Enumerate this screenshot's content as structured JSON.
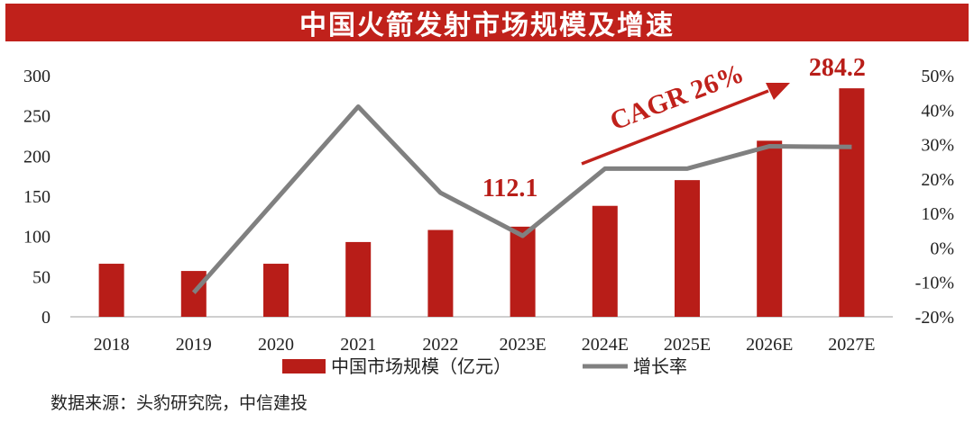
{
  "chart_data": {
    "type": "bar",
    "title": "中国火箭发射市场规模及增速",
    "categories": [
      "2018",
      "2019",
      "2020",
      "2021",
      "2022",
      "2023E",
      "2024E",
      "2025E",
      "2026E",
      "2027E"
    ],
    "series": [
      {
        "name": "中国市场规模（亿元）",
        "type": "bar",
        "axis": "left",
        "color": "#b81d18",
        "values": [
          66,
          57,
          66,
          93,
          108,
          112.1,
          138,
          170,
          219,
          284.2
        ]
      },
      {
        "name": "增长率",
        "type": "line",
        "axis": "right",
        "color": "#808080",
        "values": [
          null,
          -13,
          14,
          41,
          16,
          3.5,
          23,
          23,
          29.5,
          29.3
        ]
      }
    ],
    "ylim_left": [
      0,
      300
    ],
    "ytick_left": [
      "0",
      "50",
      "100",
      "150",
      "200",
      "250",
      "300"
    ],
    "ylim_right": [
      -20,
      50
    ],
    "ytick_right": [
      "-20%",
      "-10%",
      "0%",
      "10%",
      "20%",
      "30%",
      "40%",
      "50%"
    ],
    "annotations": [
      {
        "text": "112.1",
        "category": "2023E"
      },
      {
        "text": "284.2",
        "category": "2027E"
      },
      {
        "text": "CAGR 26%",
        "type": "arrow"
      }
    ],
    "legend_position": "bottom",
    "grid": false
  },
  "source": "数据来源：头豹研究院，中信建投"
}
